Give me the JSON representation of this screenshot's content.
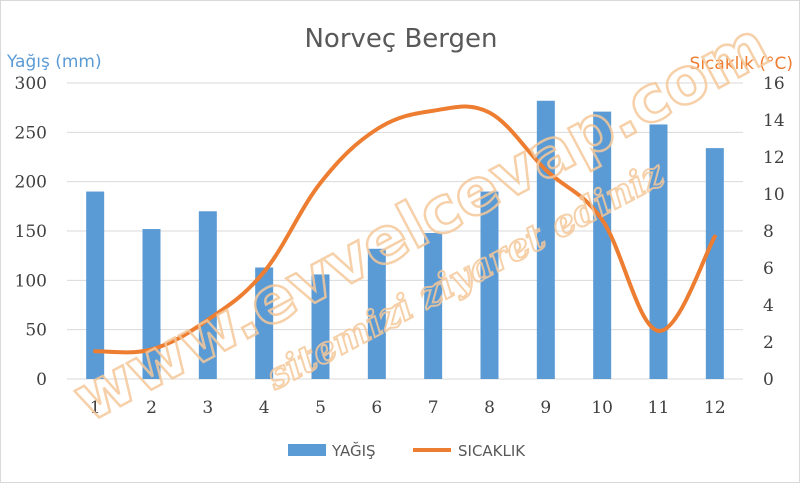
{
  "chart_data": {
    "type": "bar+line",
    "title": "Norveç Bergen",
    "ylabel_left": "Yağış (mm)",
    "ylabel_right": "Sıcaklık (°C)",
    "categories": [
      "1",
      "2",
      "3",
      "4",
      "5",
      "6",
      "7",
      "8",
      "9",
      "10",
      "11",
      "12"
    ],
    "ylim_left": [
      0,
      300
    ],
    "yticks_left": [
      0,
      50,
      100,
      150,
      200,
      250,
      300
    ],
    "ylim_right": [
      0,
      16
    ],
    "yticks_right": [
      0,
      2,
      4,
      6,
      8,
      10,
      12,
      14,
      16
    ],
    "grid": true,
    "legend_position": "bottom",
    "series": [
      {
        "name": "YAĞIŞ",
        "type": "bar",
        "axis": "left",
        "color": "#5b9bd5",
        "values": [
          190,
          152,
          170,
          113,
          106,
          132,
          148,
          190,
          282,
          271,
          258,
          234
        ]
      },
      {
        "name": "SICAKLIK",
        "type": "line",
        "axis": "right",
        "color": "#ed7d31",
        "values": [
          1.5,
          1.6,
          3.2,
          5.8,
          10.6,
          13.5,
          14.5,
          14.4,
          11.3,
          8.6,
          2.6,
          7.7
        ]
      }
    ]
  },
  "watermark": {
    "line1": "www.evvelcevap.com",
    "line2": "sitemizi ziyaret ediniz",
    "color": "#f5c89a"
  }
}
